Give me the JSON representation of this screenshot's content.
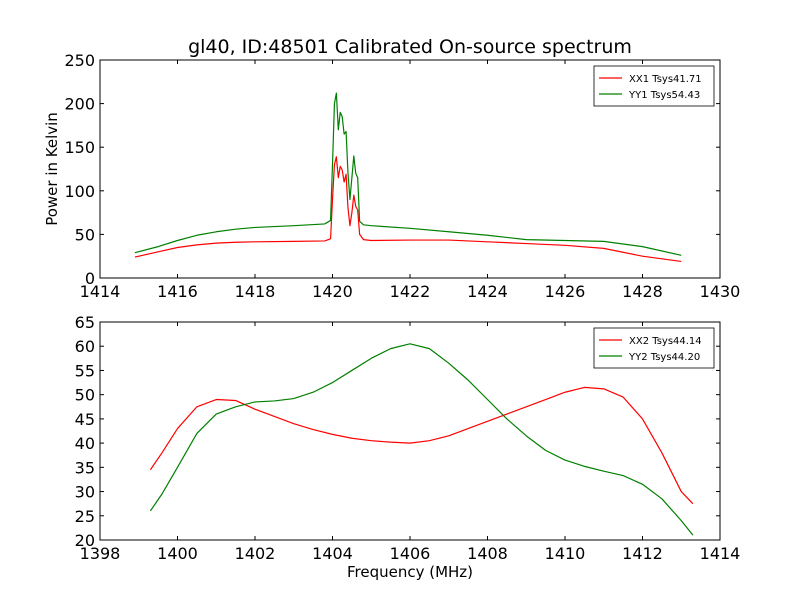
{
  "figure": {
    "title": "gl40, ID:48501 Calibrated On-source spectrum",
    "background": "#ffffff"
  },
  "chart_data": [
    {
      "type": "line",
      "ylabel": "Power in Kelvin",
      "xlabel": "",
      "xlim": [
        1414,
        1430
      ],
      "ylim": [
        0,
        250
      ],
      "xticks": [
        "1414",
        "1416",
        "1418",
        "1420",
        "1422",
        "1424",
        "1426",
        "1428",
        "1430"
      ],
      "yticks": [
        "0",
        "50",
        "100",
        "150",
        "200",
        "250"
      ],
      "legend_position": "top-right",
      "series": [
        {
          "name": "XX1 Tsys41.71",
          "color": "#ff0000",
          "points": [
            [
              1414.9,
              24
            ],
            [
              1415.5,
              30
            ],
            [
              1416,
              35
            ],
            [
              1416.5,
              38
            ],
            [
              1417,
              40
            ],
            [
              1417.5,
              41
            ],
            [
              1418,
              41.5
            ],
            [
              1419,
              42
            ],
            [
              1419.8,
              42.5
            ],
            [
              1419.95,
              45
            ],
            [
              1420.0,
              90
            ],
            [
              1420.05,
              130
            ],
            [
              1420.1,
              139
            ],
            [
              1420.15,
              115
            ],
            [
              1420.2,
              128
            ],
            [
              1420.25,
              124
            ],
            [
              1420.3,
              110
            ],
            [
              1420.35,
              119
            ],
            [
              1420.4,
              80
            ],
            [
              1420.45,
              60
            ],
            [
              1420.5,
              75
            ],
            [
              1420.55,
              95
            ],
            [
              1420.6,
              82
            ],
            [
              1420.65,
              78
            ],
            [
              1420.7,
              50
            ],
            [
              1420.8,
              44
            ],
            [
              1421,
              43
            ],
            [
              1422,
              43.5
            ],
            [
              1423,
              43.5
            ],
            [
              1424,
              41.5
            ],
            [
              1425,
              39.5
            ],
            [
              1426,
              37.5
            ],
            [
              1427,
              34
            ],
            [
              1428,
              25
            ],
            [
              1429,
              19
            ]
          ]
        },
        {
          "name": "YY1 Tsys54.43",
          "color": "#008000",
          "points": [
            [
              1414.9,
              29
            ],
            [
              1415.5,
              36
            ],
            [
              1416,
              43
            ],
            [
              1416.5,
              49
            ],
            [
              1417,
              53
            ],
            [
              1417.5,
              56
            ],
            [
              1418,
              58
            ],
            [
              1419,
              60
            ],
            [
              1419.8,
              62
            ],
            [
              1419.95,
              66
            ],
            [
              1420.0,
              130
            ],
            [
              1420.05,
              200
            ],
            [
              1420.1,
              212
            ],
            [
              1420.15,
              170
            ],
            [
              1420.2,
              190
            ],
            [
              1420.25,
              185
            ],
            [
              1420.3,
              165
            ],
            [
              1420.35,
              168
            ],
            [
              1420.4,
              120
            ],
            [
              1420.45,
              90
            ],
            [
              1420.5,
              115
            ],
            [
              1420.55,
              140
            ],
            [
              1420.6,
              120
            ],
            [
              1420.65,
              115
            ],
            [
              1420.7,
              65
            ],
            [
              1420.8,
              61
            ],
            [
              1421,
              60
            ],
            [
              1422,
              57
            ],
            [
              1423,
              53
            ],
            [
              1424,
              49
            ],
            [
              1425,
              44
            ],
            [
              1426,
              43
            ],
            [
              1427,
              42
            ],
            [
              1428,
              36
            ],
            [
              1429,
              26
            ]
          ]
        }
      ]
    },
    {
      "type": "line",
      "ylabel": "",
      "xlabel": "Frequency (MHz)",
      "xlim": [
        1398,
        1414
      ],
      "ylim": [
        20,
        65
      ],
      "xticks": [
        "1398",
        "1400",
        "1402",
        "1404",
        "1406",
        "1408",
        "1410",
        "1412",
        "1414"
      ],
      "yticks": [
        "20",
        "25",
        "30",
        "35",
        "40",
        "45",
        "50",
        "55",
        "60",
        "65"
      ],
      "legend_position": "top-right",
      "series": [
        {
          "name": "XX2 Tsys44.14",
          "color": "#ff0000",
          "points": [
            [
              1399.3,
              34.5
            ],
            [
              1399.6,
              38
            ],
            [
              1400,
              43
            ],
            [
              1400.5,
              47.5
            ],
            [
              1401,
              49
            ],
            [
              1401.5,
              48.8
            ],
            [
              1402,
              47
            ],
            [
              1402.5,
              45.5
            ],
            [
              1403,
              44
            ],
            [
              1403.5,
              42.8
            ],
            [
              1404,
              41.8
            ],
            [
              1404.5,
              41
            ],
            [
              1405,
              40.5
            ],
            [
              1405.5,
              40.2
            ],
            [
              1406,
              40
            ],
            [
              1406.5,
              40.5
            ],
            [
              1407,
              41.5
            ],
            [
              1407.5,
              43
            ],
            [
              1408,
              44.5
            ],
            [
              1408.5,
              46
            ],
            [
              1409,
              47.5
            ],
            [
              1409.5,
              49
            ],
            [
              1410,
              50.5
            ],
            [
              1410.5,
              51.5
            ],
            [
              1411,
              51.2
            ],
            [
              1411.5,
              49.5
            ],
            [
              1412,
              45
            ],
            [
              1412.5,
              38
            ],
            [
              1413,
              30
            ],
            [
              1413.3,
              27.5
            ]
          ]
        },
        {
          "name": "YY2 Tsys44.20",
          "color": "#008000",
          "points": [
            [
              1399.3,
              26
            ],
            [
              1399.6,
              29.5
            ],
            [
              1400,
              35
            ],
            [
              1400.5,
              42
            ],
            [
              1401,
              46
            ],
            [
              1401.5,
              47.5
            ],
            [
              1402,
              48.5
            ],
            [
              1402.5,
              48.7
            ],
            [
              1403,
              49.2
            ],
            [
              1403.5,
              50.5
            ],
            [
              1404,
              52.5
            ],
            [
              1404.5,
              55
            ],
            [
              1405,
              57.5
            ],
            [
              1405.5,
              59.5
            ],
            [
              1406,
              60.5
            ],
            [
              1406.5,
              59.5
            ],
            [
              1407,
              56.5
            ],
            [
              1407.5,
              53
            ],
            [
              1408,
              49
            ],
            [
              1408.5,
              45
            ],
            [
              1409,
              41.5
            ],
            [
              1409.5,
              38.5
            ],
            [
              1410,
              36.5
            ],
            [
              1410.5,
              35.2
            ],
            [
              1411,
              34.2
            ],
            [
              1411.5,
              33.3
            ],
            [
              1412,
              31.5
            ],
            [
              1412.5,
              28.5
            ],
            [
              1413,
              24
            ],
            [
              1413.3,
              21
            ]
          ]
        }
      ]
    }
  ]
}
